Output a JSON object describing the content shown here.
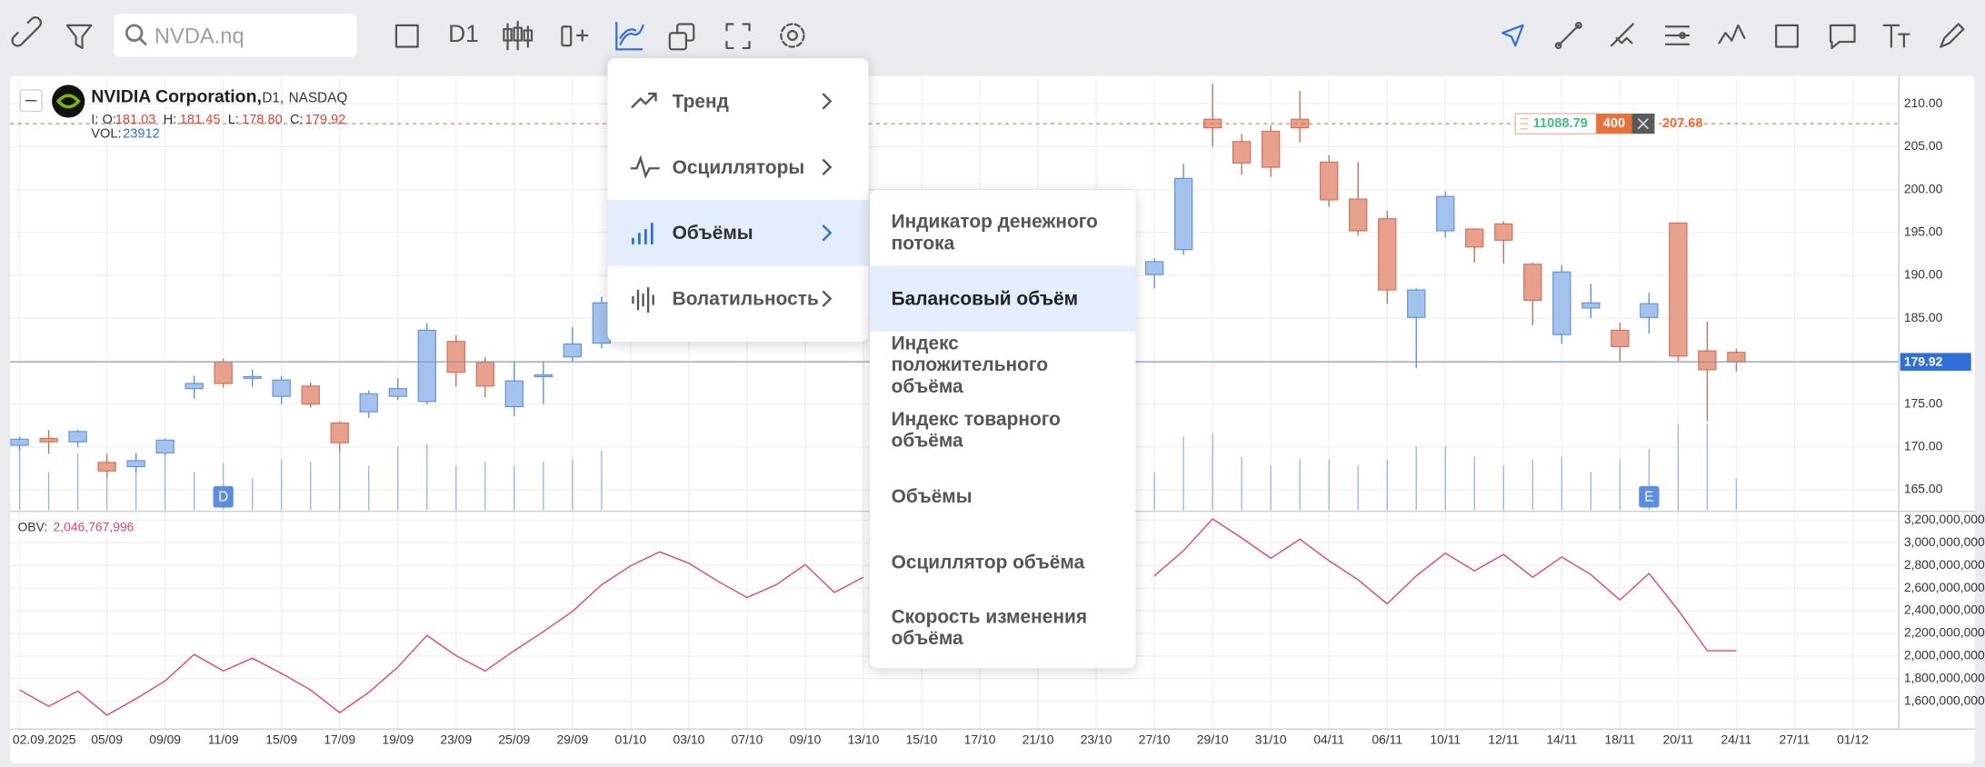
{
  "toolbar": {
    "search_placeholder": "NVDA.nq",
    "timeframe": "D1"
  },
  "legend": {
    "name": "NVIDIA Corporation,",
    "timeframe": "D1,",
    "exchange": "NASDAQ",
    "prefix": "I: O:",
    "open": "181.03",
    "high_label": "H:",
    "high": "181.45",
    "low_label": "L:",
    "low": "178.80",
    "close_label": "C:",
    "close": "179.92",
    "volume_label": "VOL:",
    "volume": "23912"
  },
  "order": {
    "amount": 11088.79,
    "quantity": 400,
    "price": 207.68,
    "color": "#e8703a"
  },
  "menu": {
    "items": [
      "Тренд",
      "Осцилляторы",
      "Объёмы",
      "Волатильность"
    ],
    "active": 2,
    "submenu": {
      "items": [
        "Индикатор денежного потока",
        "Балансовый объём",
        "Индекс положительного объёма",
        "Индекс товарного объёма",
        "Объёмы",
        "Осциллятор объёма",
        "Скорость изменения объёма"
      ],
      "active": 1
    }
  },
  "chart_data": [
    {
      "type": "candlestick",
      "categories": [
        "02.09.2025",
        null,
        null,
        "05/09",
        null,
        "09/09",
        null,
        "11/09",
        null,
        "15/09",
        null,
        "17/09",
        null,
        "19/09",
        null,
        "23/09",
        null,
        "25/09",
        null,
        "29/09",
        null,
        "01/10",
        null,
        "03/10",
        null,
        "07/10",
        null,
        "09/10",
        null,
        "13/10",
        null,
        "15/10",
        null,
        "17/10",
        null,
        "21/10",
        null,
        "23/10",
        null,
        "27/10",
        null,
        "29/10",
        null,
        "31/10",
        null,
        "04/11",
        null,
        "06/11",
        null,
        "10/11",
        null,
        "12/11",
        null,
        "14/11",
        null,
        "18/11",
        null,
        "20/11",
        null,
        "24/11",
        null,
        "27/11",
        null,
        "01/12",
        null
      ],
      "open": [
        170.2,
        171.0,
        170.6,
        168.2,
        167.7,
        169.3,
        176.8,
        179.9,
        178.0,
        175.9,
        177.1,
        172.8,
        174.1,
        175.9,
        175.3,
        182.3,
        179.9,
        174.7,
        178.2,
        180.5,
        182.1,
        null,
        null,
        null,
        null,
        null,
        null,
        null,
        null,
        null,
        null,
        null,
        null,
        null,
        null,
        null,
        null,
        null,
        null,
        190.1,
        193.0,
        208.2,
        205.6,
        206.8,
        208.2,
        203.2,
        198.9,
        196.6,
        185.1,
        195.2,
        195.4,
        196.0,
        191.3,
        183.1,
        186.2,
        183.6,
        185.1,
        196.1,
        181.2,
        181.03,
        null,
        null,
        null,
        null,
        null
      ],
      "high": [
        171.2,
        172.0,
        172.0,
        169.2,
        169.3,
        171.0,
        178.3,
        180.3,
        179.0,
        178.3,
        177.5,
        173.0,
        176.6,
        178.0,
        184.4,
        183.0,
        180.5,
        180.0,
        180.0,
        184.0,
        187.5,
        null,
        null,
        null,
        null,
        null,
        null,
        null,
        null,
        null,
        null,
        null,
        null,
        null,
        null,
        null,
        null,
        null,
        null,
        192.0,
        203.0,
        212.3,
        206.5,
        207.5,
        211.5,
        204.0,
        203.2,
        197.5,
        188.5,
        199.8,
        195.5,
        196.3,
        191.5,
        191.2,
        189.0,
        184.5,
        188.0,
        196.1,
        184.6,
        181.45,
        null,
        null,
        null,
        null,
        null
      ],
      "low": [
        169.6,
        169.2,
        170.0,
        166.5,
        167.0,
        169.0,
        175.6,
        176.9,
        177.0,
        175.0,
        174.6,
        169.5,
        173.4,
        175.5,
        175.0,
        177.0,
        175.8,
        173.6,
        175.0,
        180.0,
        181.5,
        null,
        null,
        null,
        null,
        null,
        null,
        null,
        null,
        null,
        null,
        null,
        null,
        null,
        null,
        null,
        null,
        null,
        null,
        188.5,
        192.4,
        205.0,
        201.7,
        201.5,
        205.5,
        198.0,
        194.6,
        186.7,
        179.2,
        194.4,
        191.5,
        191.4,
        184.2,
        182.0,
        185.0,
        180.0,
        183.2,
        180.0,
        173.0,
        178.8,
        null,
        null,
        null,
        null,
        null
      ],
      "close": [
        170.9,
        170.6,
        171.8,
        167.2,
        168.4,
        170.8,
        177.4,
        177.4,
        178.2,
        177.8,
        175.0,
        170.5,
        176.2,
        176.8,
        183.6,
        178.7,
        177.1,
        177.7,
        178.4,
        182.0,
        186.8,
        null,
        null,
        null,
        null,
        null,
        null,
        null,
        null,
        null,
        null,
        null,
        null,
        null,
        null,
        null,
        null,
        null,
        null,
        191.6,
        201.3,
        207.2,
        203.1,
        202.6,
        207.2,
        198.8,
        195.2,
        188.3,
        188.3,
        199.2,
        193.3,
        194.1,
        187.1,
        190.4,
        186.8,
        181.7,
        186.7,
        180.6,
        179.0,
        179.92,
        null,
        null,
        null,
        null,
        null
      ],
      "volume": [
        47800,
        28700,
        43000,
        38200,
        41100,
        43000,
        28700,
        35400,
        23900,
        38200,
        36300,
        45900,
        33500,
        47800,
        49700,
        33500,
        36300,
        33500,
        36300,
        38200,
        44900,
        null,
        null,
        null,
        null,
        null,
        null,
        null,
        null,
        null,
        null,
        null,
        null,
        null,
        null,
        null,
        null,
        null,
        null,
        28700,
        55400,
        57400,
        40200,
        33500,
        38200,
        38200,
        33500,
        38200,
        47800,
        47800,
        40200,
        33500,
        38200,
        40200,
        28700,
        38200,
        45900,
        65000,
        65000,
        23912,
        null,
        null,
        null,
        null,
        null
      ],
      "volume_ylim": [
        0,
        325000
      ],
      "up_color": "#a4c2ec",
      "up_stroke": "#5f8fdb",
      "down_color": "#e6a08b",
      "down_stroke": "#c9705a",
      "volume_color": "#9ab8e6",
      "ylim": [
        162.64,
        212.95
      ],
      "yticks": [
        {
          "value": 210,
          "label": "210.00"
        },
        {
          "value": 205,
          "label": "205.00"
        },
        {
          "value": 200,
          "label": "200.00"
        },
        {
          "value": 195,
          "label": "195.00"
        },
        {
          "value": 190,
          "label": "190.00"
        },
        {
          "value": 185,
          "label": "185.00"
        },
        {
          "value": 180,
          "label": "180.00"
        },
        {
          "value": 175,
          "label": "175.00"
        },
        {
          "value": 170,
          "label": "170.00"
        },
        {
          "value": 165,
          "label": "165.00"
        }
      ],
      "grid": true,
      "events": [
        {
          "at": 7,
          "label": "D"
        },
        {
          "at": 56,
          "label": "E"
        }
      ]
    },
    {
      "type": "line",
      "series": [
        {
          "name": "OBV:",
          "color": "#e0417a",
          "values": [
            1700000000,
            1555000000,
            1690000000,
            1477000000,
            1622000000,
            1779000000,
            2014000000,
            1868000000,
            1980000000,
            1846000000,
            1700000000,
            1499000000,
            1678000000,
            1902000000,
            2182000000,
            2003000000,
            1868000000,
            2047000000,
            2215000000,
            2394000000,
            2629000000,
            2797000000,
            2920000000,
            2820000000,
            2660000000,
            2517000000,
            2629000000,
            2808000000,
            2562000000,
            2696000000,
            null,
            null,
            null,
            null,
            null,
            null,
            null,
            null,
            null,
            2708000000,
            2931000000,
            3211000000,
            3043000000,
            2864000000,
            3032000000,
            2842000000,
            2674000000,
            2461000000,
            2708000000,
            2909000000,
            2752000000,
            2898000000,
            2696000000,
            2875000000,
            2719000000,
            2495000000,
            2730000000,
            2405000000,
            2047000000,
            2046767996,
            null,
            null,
            null,
            null,
            null
          ],
          "value_labels": [
            null,
            null,
            null,
            null,
            null,
            null,
            null,
            null,
            null,
            null,
            null,
            null,
            null,
            null,
            null,
            null,
            null,
            null,
            null,
            null,
            null,
            null,
            null,
            null,
            null,
            null,
            null,
            null,
            null,
            null,
            null,
            null,
            null,
            null,
            null,
            null,
            null,
            null,
            null,
            null,
            null,
            null,
            null,
            null,
            null,
            null,
            null,
            null,
            null,
            null,
            null,
            null,
            null,
            null,
            null,
            null,
            null,
            null,
            null,
            "2,046,767,996",
            null,
            null,
            null,
            null,
            null
          ]
        }
      ],
      "ylim": [
        1365000000,
        3267000000
      ],
      "yticks": [
        {
          "value": 3200000000,
          "label": "3,200,000,000"
        },
        {
          "value": 3000000000,
          "label": "3,000,000,000"
        },
        {
          "value": 2800000000,
          "label": "2,800,000,000"
        },
        {
          "value": 2600000000,
          "label": "2,600,000,000"
        },
        {
          "value": 2400000000,
          "label": "2,400,000,000"
        },
        {
          "value": 2200000000,
          "label": "2,200,000,000"
        },
        {
          "value": 2000000000,
          "label": "2,000,000,000"
        },
        {
          "value": 1800000000,
          "label": "1,800,000,000"
        },
        {
          "value": 1600000000,
          "label": "1,600,000,000"
        }
      ],
      "grid": true
    }
  ]
}
